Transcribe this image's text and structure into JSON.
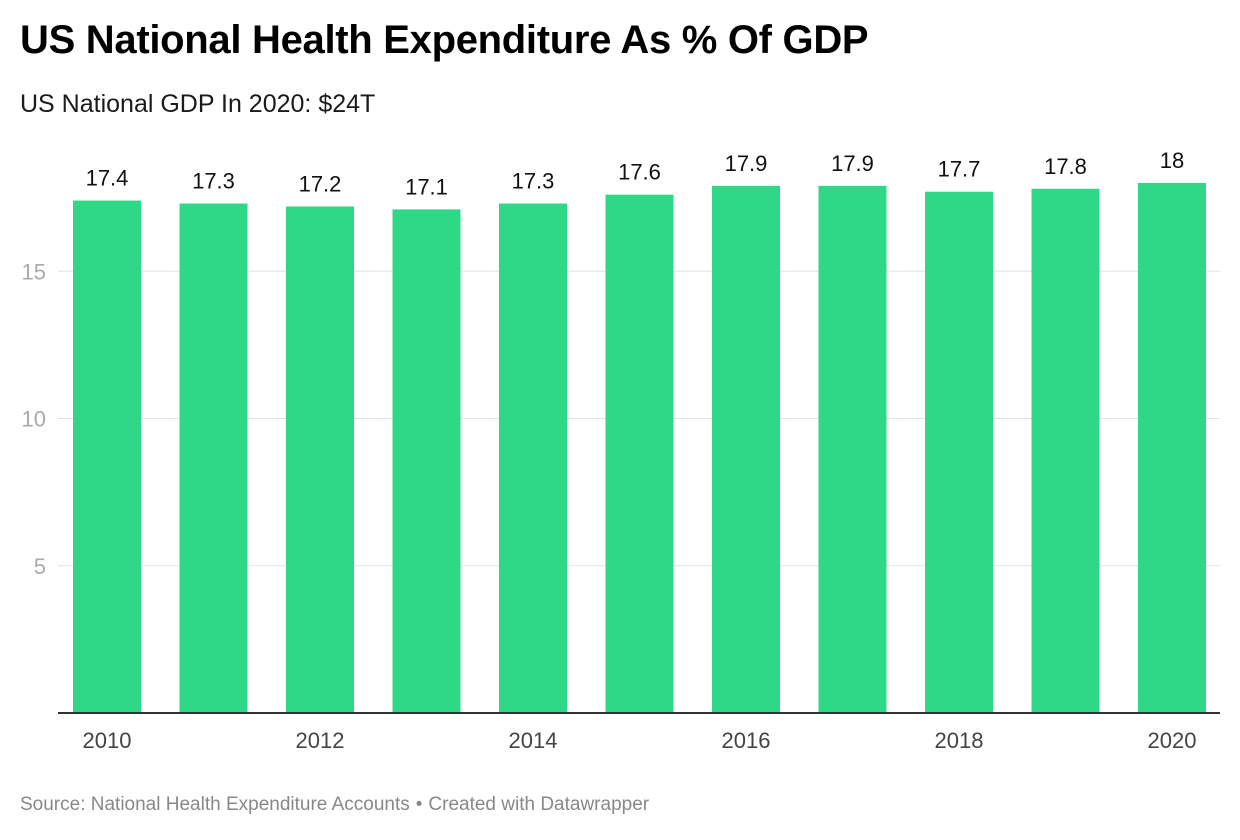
{
  "title": "US National Health Expenditure As % Of GDP",
  "subtitle": "US National GDP In 2020: $24T",
  "footer": {
    "source": "Source: National Health Expenditure Accounts",
    "separator": "•",
    "credit": "Created with Datawrapper"
  },
  "colors": {
    "bar": "#2ed886",
    "grid": "#e2e2e2",
    "axis": "#333333",
    "tick_label": "#aaaaaa",
    "category_label": "#444444",
    "value_label": "#111111"
  },
  "chart_data": {
    "type": "bar",
    "title": "US National Health Expenditure As % Of GDP",
    "subtitle": "US National GDP In 2020: $24T",
    "categories": [
      "2010",
      "2011",
      "2012",
      "2013",
      "2014",
      "2015",
      "2016",
      "2017",
      "2018",
      "2019",
      "2020"
    ],
    "values": [
      17.4,
      17.3,
      17.2,
      17.1,
      17.3,
      17.6,
      17.9,
      17.9,
      17.7,
      17.8,
      18
    ],
    "value_labels": [
      "17.4",
      "17.3",
      "17.2",
      "17.1",
      "17.3",
      "17.6",
      "17.9",
      "17.9",
      "17.7",
      "17.8",
      "18"
    ],
    "x_tick_labels": [
      "2010",
      "",
      "2012",
      "",
      "2014",
      "",
      "2016",
      "",
      "2018",
      "",
      "2020"
    ],
    "y_ticks": [
      5,
      10,
      15
    ],
    "y_tick_labels": [
      "5",
      "10",
      "15"
    ],
    "ylim": [
      0,
      18
    ],
    "xlabel": "",
    "ylabel": "",
    "grid": true,
    "legend": "none"
  }
}
